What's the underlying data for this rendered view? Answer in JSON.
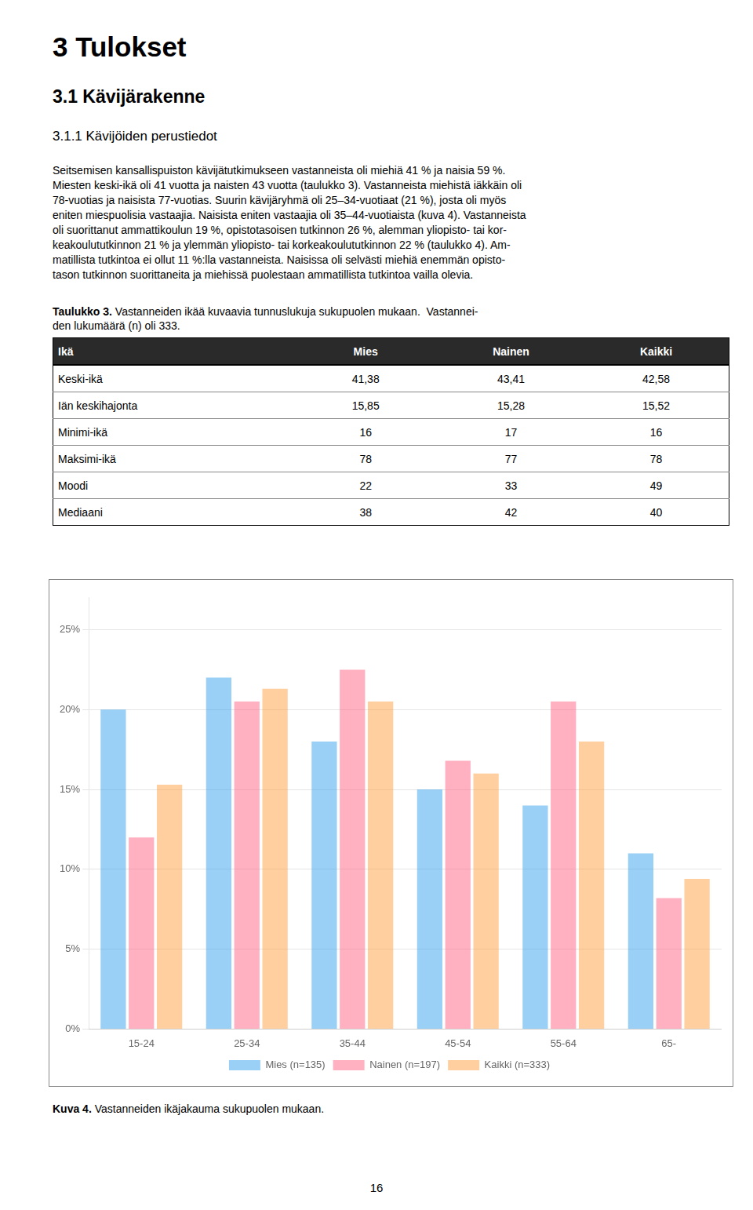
{
  "page_title": "3 Tulokset",
  "section_title": "3.1 Kävijärakenne",
  "subsection_title": "3.1.1 Kävijöiden perustiedot",
  "body_text_lines": [
    "Seitsemisen kansallispuiston kävijätutkimukseen vastanneista oli miehiä 41 % ja naisia 59 %.",
    "Miesten keski-ikä oli 41 vuotta ja naisten 43 vuotta (taulukko 3). Vastanneista miehistä iäkkäin oli",
    "78-vuotias ja naisista 77-vuotias. Suurin kävijäryhmä oli 25–34-vuotiaat (21 %), josta oli myös",
    "eniten miespuolisia vastaajia. Naisista eniten vastaajia oli 35–44-vuotiaista (kuva 4). Vastanneista",
    "oli suorittanut ammattikoulun 19 %, opistotasoisen tutkinnon 26 %, alemman yliopisto- tai kor-",
    "keakoulututkinnon 21 % ja ylemmän yliopisto- tai korkeakoulututkinnon 22 % (taulukko 4). Am-",
    "matillista tutkintoa ei ollut 11 %:lla vastanneista. Naisissa oli selvästi miehiä enemmän opisto-",
    "tason tutkinnon suorittaneita ja miehissä puolestaan ammatillista tutkintoa vailla olevia."
  ],
  "table_label_bold": "Taulukko 3.",
  "table_label_normal": " Vastanneiden ikää kuvaavia tunnuslukuja sukupuolen mukaan.  Vastannei-",
  "table_label_line2": "den lukumäärä (n) oli 333.",
  "table": {
    "headers": [
      "Ikä",
      "Mies",
      "Nainen",
      "Kaikki"
    ],
    "rows": [
      [
        "Keski-ikä",
        "41,38",
        "43,41",
        "42,58"
      ],
      [
        "Iän keskihajonta",
        "15,85",
        "15,28",
        "15,52"
      ],
      [
        "Minimi-ikä",
        "16",
        "17",
        "16"
      ],
      [
        "Maksimi-ikä",
        "78",
        "77",
        "78"
      ],
      [
        "Moodi",
        "22",
        "33",
        "49"
      ],
      [
        "Mediaani",
        "38",
        "42",
        "40"
      ]
    ]
  },
  "chart_data": {
    "type": "bar",
    "categories": [
      "15-24",
      "25-34",
      "35-44",
      "45-54",
      "55-64",
      "65-"
    ],
    "series": [
      {
        "name": "Mies (n=135)",
        "values": [
          0.2,
          0.22,
          0.18,
          0.15,
          0.14,
          0.11
        ]
      },
      {
        "name": "Nainen (n=197)",
        "values": [
          0.12,
          0.205,
          0.225,
          0.168,
          0.205,
          0.082
        ]
      },
      {
        "name": "Kaikki (n=333)",
        "values": [
          0.153,
          0.213,
          0.205,
          0.16,
          0.18,
          0.094
        ]
      }
    ],
    "ylim": [
      0,
      0.27
    ],
    "yticks": [
      {
        "value": 0,
        "label": "0%"
      },
      {
        "value": 0.05,
        "label": "5%"
      },
      {
        "value": 0.1,
        "label": "10%"
      },
      {
        "value": 0.15,
        "label": "15%"
      },
      {
        "value": 0.2,
        "label": "20%"
      },
      {
        "value": 0.25,
        "label": "25%"
      }
    ],
    "grid": true,
    "legend": "bottom"
  },
  "figure_caption_bold": "Kuva 4.",
  "figure_caption_normal": " Vastanneiden ikäjakauma sukupuolen mukaan.",
  "page_number": "16"
}
